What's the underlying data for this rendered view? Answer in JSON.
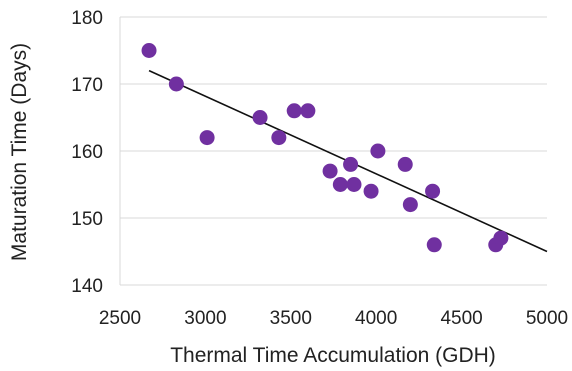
{
  "chart_data": {
    "type": "scatter",
    "xlabel": "Thermal Time Accumulation (GDH)",
    "ylabel": "Maturation Time (Days)",
    "xlim": [
      2500,
      5000
    ],
    "ylim": [
      140,
      180
    ],
    "xticks": [
      2500,
      3000,
      3500,
      4000,
      4500,
      5000
    ],
    "yticks": [
      140,
      150,
      160,
      170,
      180
    ],
    "grid": "horizontal",
    "legend": "none",
    "marker_color": "#7030a0",
    "trendline_color": "#111111",
    "series": [
      {
        "points": [
          {
            "x": 2670,
            "y": 175
          },
          {
            "x": 2830,
            "y": 170
          },
          {
            "x": 3010,
            "y": 162
          },
          {
            "x": 3320,
            "y": 165
          },
          {
            "x": 3430,
            "y": 162
          },
          {
            "x": 3520,
            "y": 166
          },
          {
            "x": 3600,
            "y": 166
          },
          {
            "x": 3730,
            "y": 157
          },
          {
            "x": 3790,
            "y": 155
          },
          {
            "x": 3850,
            "y": 158
          },
          {
            "x": 3870,
            "y": 155
          },
          {
            "x": 3970,
            "y": 154
          },
          {
            "x": 4010,
            "y": 160
          },
          {
            "x": 4170,
            "y": 158
          },
          {
            "x": 4200,
            "y": 152
          },
          {
            "x": 4330,
            "y": 154
          },
          {
            "x": 4340,
            "y": 146
          },
          {
            "x": 4700,
            "y": 146
          },
          {
            "x": 4730,
            "y": 147
          }
        ]
      }
    ],
    "trendline": {
      "type": "linear",
      "x": [
        2670,
        5000
      ],
      "y": [
        172,
        145
      ]
    }
  }
}
